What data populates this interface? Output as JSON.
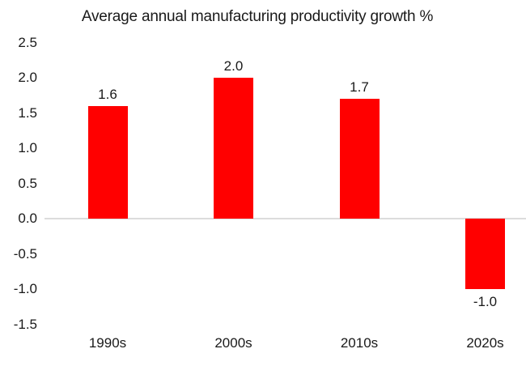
{
  "chart_data": {
    "type": "bar",
    "title": "Average annual manufacturing productivity growth %",
    "categories": [
      "1990s",
      "2000s",
      "2010s",
      "2020s"
    ],
    "values": [
      1.6,
      2.0,
      1.7,
      -1.0
    ],
    "data_labels": [
      "1.6",
      "2.0",
      "1.7",
      "-1.0"
    ],
    "yticks": [
      2.5,
      2.0,
      1.5,
      1.0,
      0.5,
      0.0,
      -0.5,
      -1.0,
      -1.5
    ],
    "ytick_labels": [
      "2.5",
      "2.0",
      "1.5",
      "1.0",
      "0.5",
      "0.0",
      "-0.5",
      "-1.0",
      "-1.5"
    ],
    "ylim": [
      -1.5,
      2.5
    ],
    "grid": false,
    "zero_line": true,
    "legend": "none",
    "colors": {
      "bar": "#ff0000",
      "text": "#1a1a1a",
      "zero_line": "#dcdcdc",
      "background": "#ffffff"
    }
  }
}
